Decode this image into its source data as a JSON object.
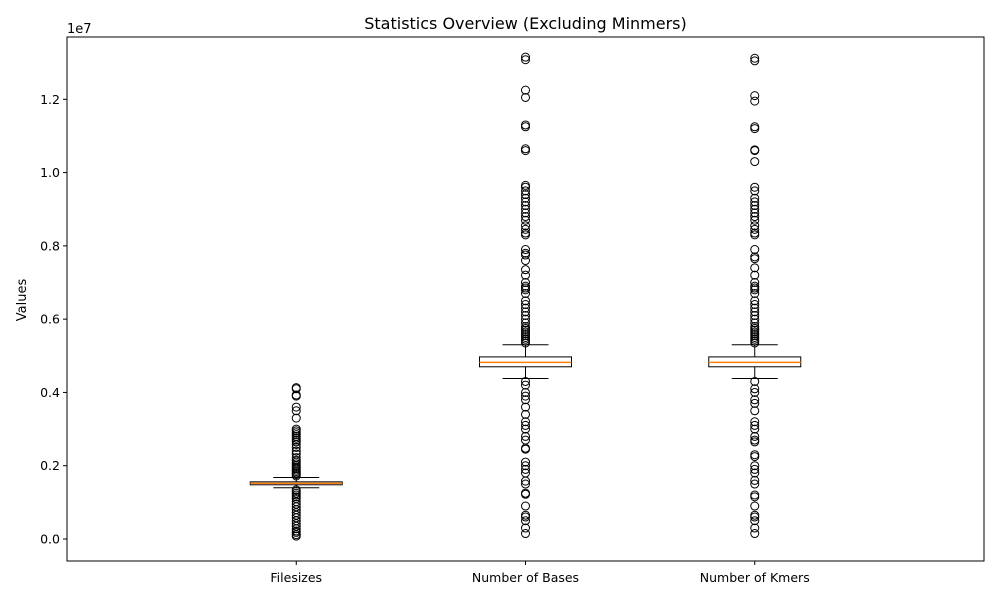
{
  "chart_data": {
    "type": "box",
    "title": "Statistics Overview (Excluding Minmers)",
    "xlabel": "",
    "ylabel": "Values",
    "y_scale_label": "1e7",
    "ylim": [
      -0.06,
      1.37
    ],
    "yticks": [
      "0.0",
      "0.2",
      "0.4",
      "0.6",
      "0.8",
      "1.0",
      "1.2"
    ],
    "categories": [
      "Filesizes",
      "Number of Bases",
      "Number of Kmers"
    ],
    "colors": {
      "median": "#ff7f0e",
      "box": "#000000",
      "outlier": "#000000"
    },
    "boxes": [
      {
        "name": "Filesizes",
        "whisker_low": 0.14,
        "q1": 0.148,
        "median": 0.152,
        "q3": 0.156,
        "whisker_high": 0.168,
        "outliers": [
          0.008,
          0.012,
          0.018,
          0.022,
          0.028,
          0.035,
          0.042,
          0.05,
          0.058,
          0.065,
          0.072,
          0.08,
          0.088,
          0.095,
          0.102,
          0.11,
          0.115,
          0.12,
          0.125,
          0.13,
          0.134,
          0.172,
          0.176,
          0.18,
          0.184,
          0.188,
          0.192,
          0.196,
          0.2,
          0.205,
          0.21,
          0.215,
          0.222,
          0.232,
          0.24,
          0.25,
          0.258,
          0.265,
          0.27,
          0.275,
          0.28,
          0.285,
          0.29,
          0.295,
          0.3,
          0.33,
          0.35,
          0.36,
          0.39,
          0.393,
          0.41,
          0.413
        ]
      },
      {
        "name": "Number of Bases",
        "whisker_low": 0.438,
        "q1": 0.47,
        "median": 0.482,
        "q3": 0.497,
        "whisker_high": 0.53,
        "outliers": [
          0.015,
          0.03,
          0.05,
          0.06,
          0.065,
          0.09,
          0.122,
          0.125,
          0.15,
          0.158,
          0.18,
          0.19,
          0.2,
          0.21,
          0.245,
          0.248,
          0.27,
          0.28,
          0.3,
          0.31,
          0.32,
          0.34,
          0.36,
          0.38,
          0.39,
          0.4,
          0.42,
          0.43,
          0.535,
          0.54,
          0.545,
          0.55,
          0.555,
          0.56,
          0.565,
          0.57,
          0.575,
          0.58,
          0.59,
          0.6,
          0.61,
          0.62,
          0.63,
          0.64,
          0.65,
          0.67,
          0.68,
          0.685,
          0.69,
          0.7,
          0.72,
          0.735,
          0.76,
          0.775,
          0.78,
          0.79,
          0.83,
          0.835,
          0.845,
          0.855,
          0.87,
          0.88,
          0.89,
          0.9,
          0.91,
          0.92,
          0.93,
          0.94,
          0.95,
          0.96,
          0.965,
          1.06,
          1.065,
          1.125,
          1.13,
          1.205,
          1.225,
          1.308,
          1.315
        ]
      },
      {
        "name": "Number of Kmers",
        "whisker_low": 0.438,
        "q1": 0.47,
        "median": 0.482,
        "q3": 0.497,
        "whisker_high": 0.53,
        "outliers": [
          0.015,
          0.03,
          0.05,
          0.06,
          0.065,
          0.09,
          0.115,
          0.12,
          0.15,
          0.16,
          0.18,
          0.19,
          0.2,
          0.225,
          0.23,
          0.265,
          0.27,
          0.28,
          0.3,
          0.31,
          0.32,
          0.35,
          0.37,
          0.38,
          0.4,
          0.41,
          0.43,
          0.535,
          0.54,
          0.545,
          0.55,
          0.555,
          0.56,
          0.565,
          0.57,
          0.575,
          0.58,
          0.59,
          0.6,
          0.61,
          0.62,
          0.63,
          0.64,
          0.65,
          0.67,
          0.68,
          0.685,
          0.69,
          0.7,
          0.72,
          0.74,
          0.765,
          0.77,
          0.79,
          0.83,
          0.835,
          0.845,
          0.855,
          0.87,
          0.88,
          0.89,
          0.9,
          0.91,
          0.92,
          0.93,
          0.95,
          0.96,
          1.03,
          1.06,
          1.062,
          1.12,
          1.125,
          1.195,
          1.21,
          1.305,
          1.312
        ]
      }
    ]
  }
}
